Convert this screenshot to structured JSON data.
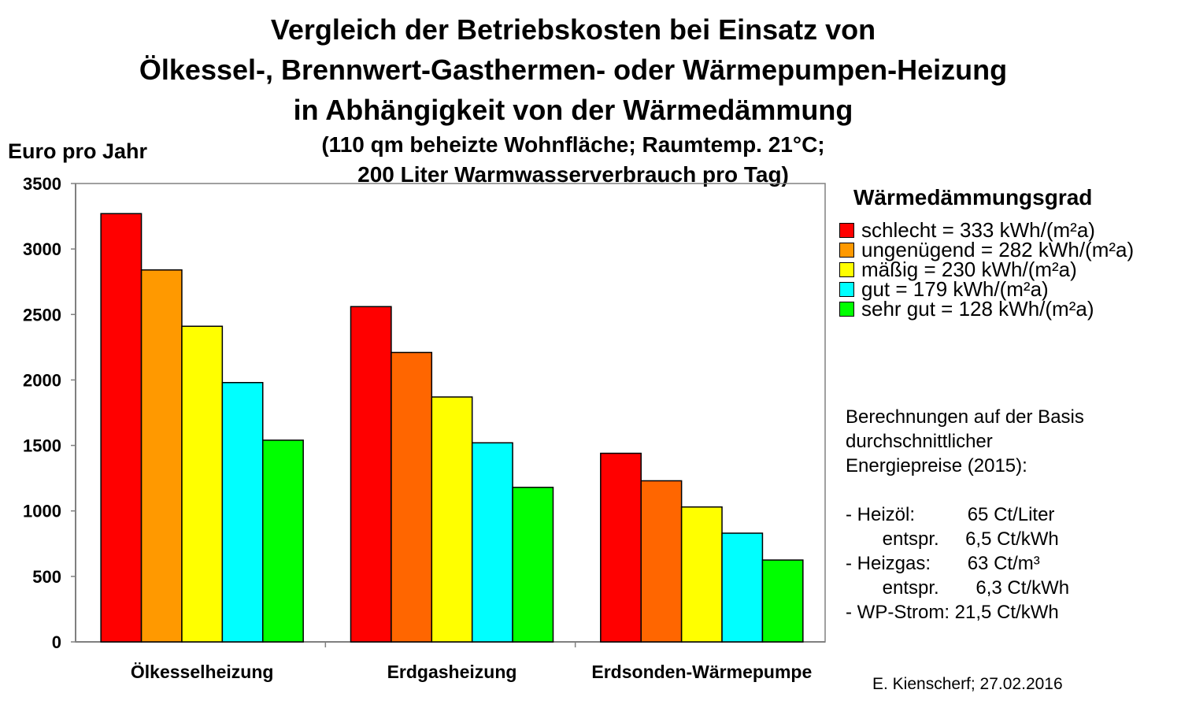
{
  "title": {
    "lines": [
      "Vergleich der Betriebskosten bei Einsatz von",
      "Ölkessel-, Brennwert-Gasthermen- oder Wärmepumpen-Heizung",
      "in Abhängigkeit von der Wärmedämmung"
    ],
    "subtitle_lines": [
      "(110 qm beheizte Wohnfläche; Raumtemp. 21°C;",
      "200 Liter Warmwasserverbrauch pro Tag)"
    ]
  },
  "chart_data": {
    "type": "bar",
    "title": "Vergleich der Betriebskosten bei Einsatz von Ölkessel-, Brennwert-Gasthermen- oder Wärmepumpen-Heizung in Abhängigkeit von der Wärmedämmung",
    "subtitle": "(110 qm beheizte Wohnfläche; Raumtemp. 21°C; 200 Liter Warmwasserverbrauch pro Tag)",
    "ylabel": "Euro pro Jahr",
    "xlabel": "",
    "ylim": [
      0,
      3500
    ],
    "yticks": [
      0,
      500,
      1000,
      1500,
      2000,
      2500,
      3000,
      3500
    ],
    "grid": false,
    "legend_title": "Wärmedämmungsgrad",
    "legend_position": "right",
    "categories": [
      "Ölkesselheizung",
      "Erdgasheizung",
      "Erdsonden-Wärmepumpe"
    ],
    "series": [
      {
        "name": "schlecht = 333 kWh/(m²a)",
        "color": "#ff0000",
        "values": [
          3270,
          2560,
          1440
        ]
      },
      {
        "name": "ungenügend = 282 kWh/(m²a)",
        "color": "#ff9900",
        "values": [
          2840,
          2210,
          1230
        ]
      },
      {
        "name": "mäßig = 230 kWh/(m²a)",
        "color": "#ffff00",
        "values": [
          2410,
          1870,
          1030
        ]
      },
      {
        "name": "gut = 179 kWh/(m²a)",
        "color": "#00ffff",
        "values": [
          1980,
          1520,
          830
        ]
      },
      {
        "name": "sehr gut = 128 kWh/(m²a)",
        "color": "#00ff00",
        "values": [
          1540,
          1180,
          625
        ]
      }
    ],
    "series_colors_override": [
      "#ff0000",
      "#ff9900",
      "#ffff00",
      "#00ffff",
      "#00ff00"
    ]
  },
  "colors": {
    "group2_orange": "#ff6600"
  },
  "note": {
    "lines": [
      "Berechnungen auf der Basis",
      "durchschnittlicher",
      "Energiepreise (2015):",
      "",
      "- Heizöl:          65 Ct/Liter",
      "       entspr.     6,5 Ct/kWh",
      "- Heizgas:       63 Ct/m³",
      "       entspr.       6,3 Ct/kWh",
      "- WP-Strom: 21,5 Ct/kWh"
    ]
  },
  "credit": "E. Kienscherf; 27.02.2016"
}
